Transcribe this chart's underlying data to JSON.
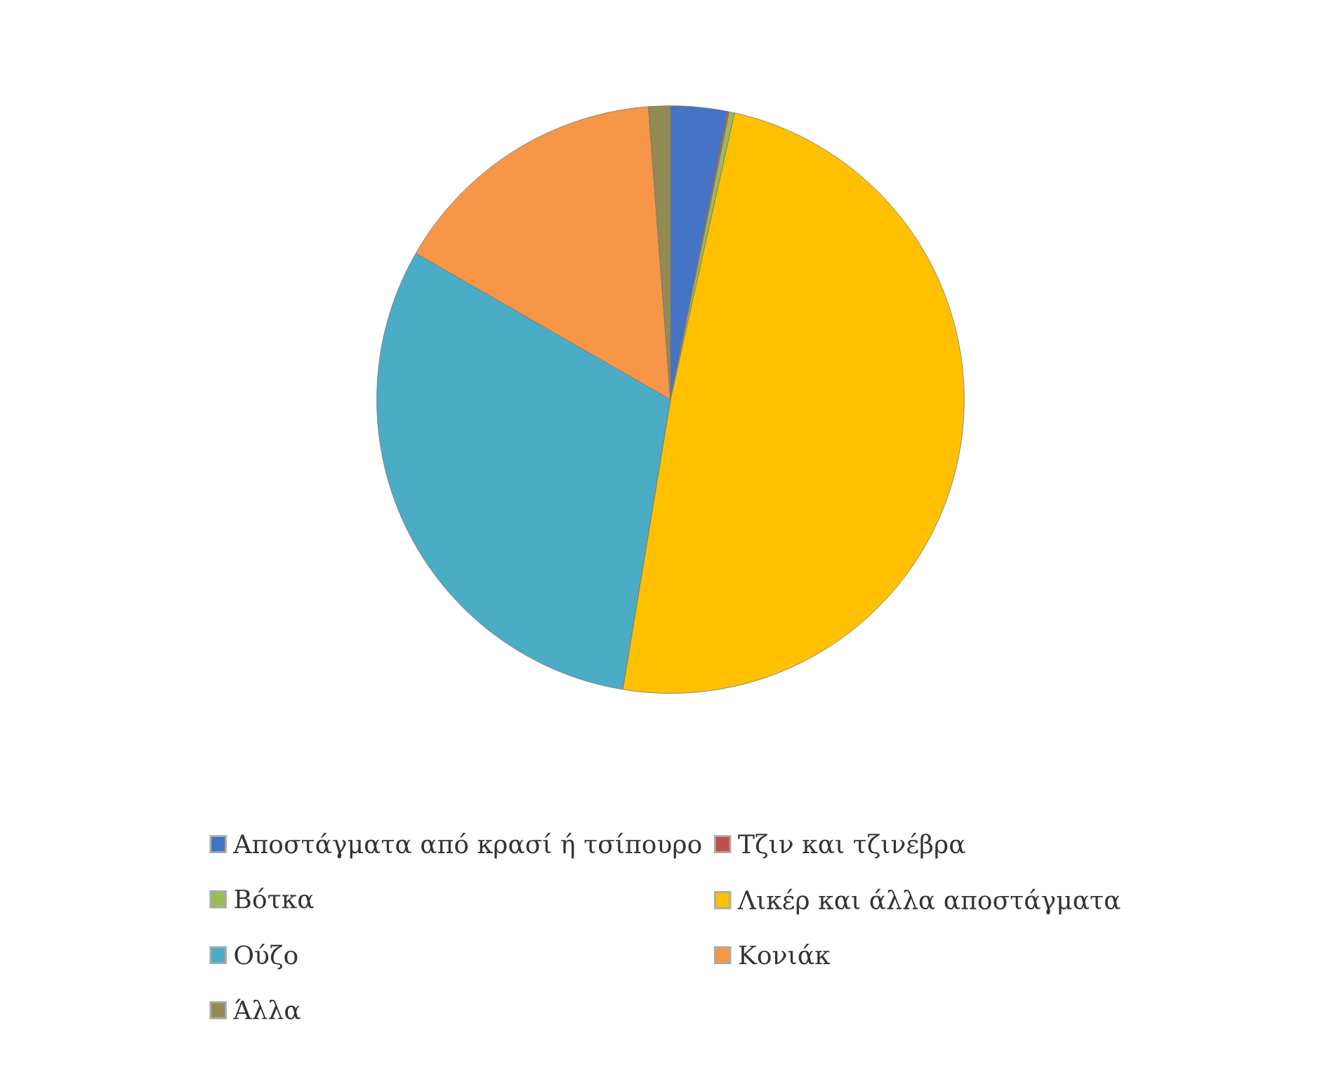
{
  "chart_data": {
    "type": "pie",
    "categories": [
      "Αποστάγματα από κρασί ή τσίπουρο",
      "Τζιν και τζινέβρα",
      "Βότκα",
      "Λικέρ και άλλα αποστάγματα",
      "Ούζο",
      "Κονιάκ",
      "Άλλα"
    ],
    "values": [
      3.1,
      0.1,
      0.3,
      49.1,
      30.7,
      15.5,
      1.2
    ],
    "colors": [
      "#4472c4",
      "#c0504d",
      "#9bbb59",
      "#ffc000",
      "#4bacc6",
      "#f79646",
      "#948a54"
    ],
    "legend": "bottom"
  }
}
